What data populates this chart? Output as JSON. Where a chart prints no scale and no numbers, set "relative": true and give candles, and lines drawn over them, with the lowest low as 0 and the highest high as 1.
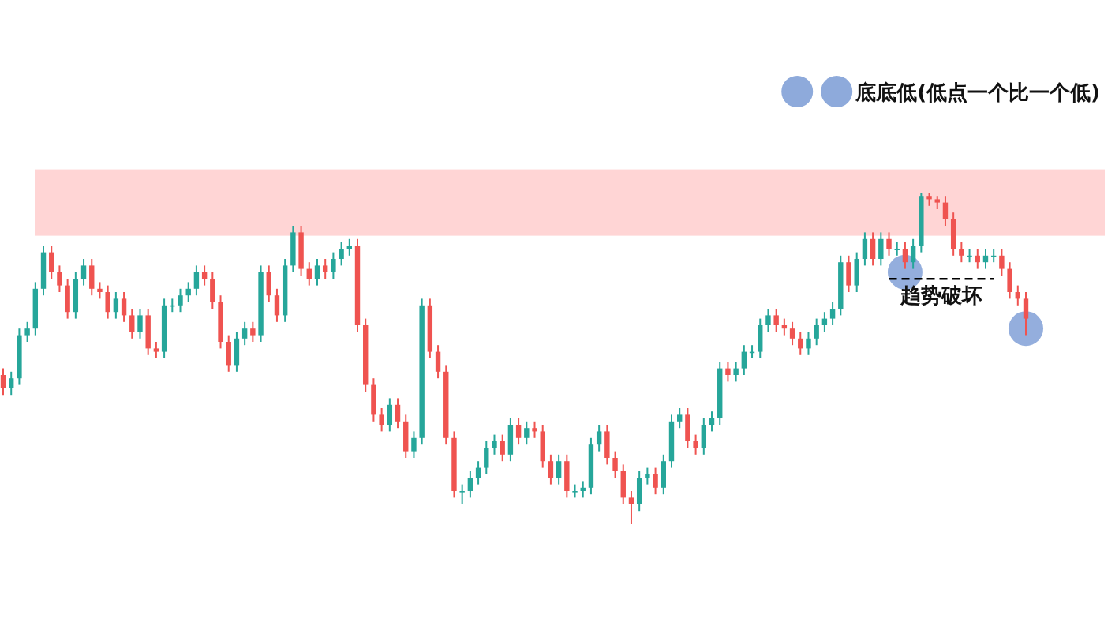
{
  "chart_data": {
    "type": "candlestick",
    "relative": true,
    "categories": [
      null,
      null,
      null,
      null,
      null,
      null,
      null,
      null,
      null,
      null,
      null,
      null,
      null,
      null,
      null,
      null,
      null,
      null,
      null,
      null,
      null,
      null,
      null,
      null,
      null,
      null,
      null,
      null,
      null,
      null,
      null,
      null,
      null,
      null,
      null,
      null,
      null,
      null,
      null,
      null,
      null,
      null,
      null,
      null,
      null,
      null,
      null,
      null,
      null,
      null,
      null,
      null,
      null,
      null,
      null,
      null,
      null,
      null,
      null,
      null,
      null,
      null,
      null,
      null,
      null,
      null,
      null,
      null,
      null,
      null,
      null,
      null,
      null,
      null,
      null,
      null,
      null,
      null,
      null,
      null,
      null,
      null,
      null,
      null,
      null,
      null,
      null,
      null,
      null,
      null,
      null,
      null,
      null,
      null,
      null,
      null,
      null,
      null,
      null,
      null,
      null,
      null,
      null,
      null,
      null,
      null,
      null,
      null,
      null,
      null,
      null,
      null,
      null,
      null,
      null,
      null,
      null,
      null,
      null,
      null,
      null,
      null,
      null,
      null,
      null,
      null,
      null,
      null
    ],
    "colors": [
      "#ef5350",
      "#26a69a",
      "#26a69a",
      "#26a69a",
      "#26a69a",
      "#26a69a",
      "#ef5350",
      "#ef5350",
      "#ef5350",
      "#26a69a",
      "#26a69a",
      "#ef5350",
      "#ef5350",
      "#ef5350",
      "#26a69a",
      "#ef5350",
      "#ef5350",
      "#26a69a",
      "#ef5350",
      "#ef5350",
      "#26a69a",
      "#26a69a",
      "#26a69a",
      "#26a69a",
      "#26a69a",
      "#ef5350",
      "#ef5350",
      "#ef5350",
      "#ef5350",
      "#26a69a",
      "#26a69a",
      "#ef5350",
      "#26a69a",
      "#ef5350",
      "#ef5350",
      "#26a69a",
      "#26a69a",
      "#ef5350",
      "#ef5350",
      "#26a69a",
      "#ef5350",
      "#26a69a",
      "#26a69a",
      "#26a69a",
      "#ef5350",
      "#ef5350",
      "#ef5350",
      "#ef5350",
      "#26a69a",
      "#ef5350",
      "#ef5350",
      "#26a69a",
      "#26a69a",
      "#ef5350",
      "#ef5350",
      "#ef5350",
      "#ef5350",
      "#26a69a",
      "#26a69a",
      "#26a69a",
      "#26a69a",
      "#26a69a",
      "#ef5350",
      "#26a69a",
      "#ef5350",
      "#26a69a",
      "#ef5350",
      "#ef5350",
      "#ef5350",
      "#26a69a",
      "#ef5350",
      "#26a69a",
      "#26a69a",
      "#26a69a",
      "#26a69a",
      "#ef5350",
      "#ef5350",
      "#ef5350",
      "#ef5350",
      "#26a69a",
      "#26a69a",
      "#ef5350",
      "#26a69a",
      "#26a69a",
      "#26a69a",
      "#ef5350",
      "#ef5350",
      "#26a69a",
      "#26a69a",
      "#26a69a",
      "#ef5350",
      "#26a69a",
      "#26a69a",
      "#26a69a",
      "#26a69a",
      "#26a69a",
      "#ef5350",
      "#ef5350",
      "#ef5350",
      "#ef5350",
      "#26a69a",
      "#26a69a",
      "#26a69a",
      "#26a69a",
      "#26a69a",
      "#ef5350",
      "#26a69a",
      "#26a69a",
      "#ef5350",
      "#26a69a",
      "#ef5350",
      "#26a69a",
      "#ef5350",
      "#26a69a",
      "#26a69a",
      "#ef5350",
      "#ef5350",
      "#ef5350",
      "#ef5350",
      "#ef5350",
      "#26a69a",
      "#ef5350",
      "#26a69a",
      "#26a69a",
      "#ef5350",
      "#ef5350",
      "#ef5350",
      "#ef5350"
    ],
    "ohlc": [
      [
        0.45,
        0.47,
        0.39,
        0.41
      ],
      [
        0.41,
        0.46,
        0.39,
        0.44
      ],
      [
        0.44,
        0.59,
        0.42,
        0.57
      ],
      [
        0.57,
        0.61,
        0.55,
        0.59
      ],
      [
        0.59,
        0.73,
        0.57,
        0.71
      ],
      [
        0.71,
        0.84,
        0.69,
        0.82
      ],
      [
        0.82,
        0.84,
        0.74,
        0.76
      ],
      [
        0.76,
        0.78,
        0.7,
        0.72
      ],
      [
        0.72,
        0.74,
        0.62,
        0.64
      ],
      [
        0.64,
        0.76,
        0.62,
        0.74
      ],
      [
        0.74,
        0.8,
        0.72,
        0.78
      ],
      [
        0.78,
        0.8,
        0.69,
        0.71
      ],
      [
        0.71,
        0.73,
        0.68,
        0.7
      ],
      [
        0.7,
        0.72,
        0.62,
        0.64
      ],
      [
        0.64,
        0.7,
        0.62,
        0.68
      ],
      [
        0.68,
        0.7,
        0.61,
        0.63
      ],
      [
        0.63,
        0.65,
        0.56,
        0.58
      ],
      [
        0.58,
        0.65,
        0.56,
        0.63
      ],
      [
        0.63,
        0.65,
        0.51,
        0.53
      ],
      [
        0.53,
        0.55,
        0.5,
        0.52
      ],
      [
        0.52,
        0.68,
        0.5,
        0.66
      ],
      [
        0.66,
        0.68,
        0.64,
        0.66
      ],
      [
        0.66,
        0.71,
        0.64,
        0.69
      ],
      [
        0.69,
        0.73,
        0.67,
        0.71
      ],
      [
        0.71,
        0.78,
        0.69,
        0.76
      ],
      [
        0.76,
        0.78,
        0.72,
        0.74
      ],
      [
        0.74,
        0.76,
        0.65,
        0.67
      ],
      [
        0.67,
        0.69,
        0.53,
        0.55
      ],
      [
        0.55,
        0.57,
        0.46,
        0.48
      ],
      [
        0.48,
        0.58,
        0.46,
        0.56
      ],
      [
        0.56,
        0.61,
        0.54,
        0.59
      ],
      [
        0.59,
        0.61,
        0.55,
        0.57
      ],
      [
        0.57,
        0.78,
        0.55,
        0.76
      ],
      [
        0.76,
        0.78,
        0.67,
        0.69
      ],
      [
        0.69,
        0.71,
        0.61,
        0.63
      ],
      [
        0.63,
        0.8,
        0.61,
        0.78
      ],
      [
        0.78,
        0.9,
        0.76,
        0.88
      ],
      [
        0.88,
        0.9,
        0.75,
        0.77
      ],
      [
        0.77,
        0.79,
        0.72,
        0.74
      ],
      [
        0.74,
        0.8,
        0.72,
        0.78
      ],
      [
        0.78,
        0.8,
        0.74,
        0.76
      ],
      [
        0.76,
        0.82,
        0.74,
        0.8
      ],
      [
        0.8,
        0.85,
        0.78,
        0.83
      ],
      [
        0.83,
        0.86,
        0.81,
        0.84
      ],
      [
        0.84,
        0.86,
        0.58,
        0.6
      ],
      [
        0.6,
        0.62,
        0.4,
        0.42
      ],
      [
        0.42,
        0.44,
        0.31,
        0.33
      ],
      [
        0.33,
        0.35,
        0.28,
        0.3
      ],
      [
        0.3,
        0.38,
        0.28,
        0.36
      ],
      [
        0.36,
        0.38,
        0.29,
        0.31
      ],
      [
        0.31,
        0.33,
        0.2,
        0.22
      ],
      [
        0.22,
        0.28,
        0.2,
        0.26
      ],
      [
        0.26,
        0.68,
        0.24,
        0.66
      ],
      [
        0.66,
        0.68,
        0.5,
        0.52
      ],
      [
        0.52,
        0.54,
        0.44,
        0.46
      ],
      [
        0.46,
        0.48,
        0.24,
        0.26
      ],
      [
        0.26,
        0.28,
        0.08,
        0.1
      ],
      [
        0.1,
        0.12,
        0.06,
        0.1
      ],
      [
        0.1,
        0.16,
        0.08,
        0.14
      ],
      [
        0.14,
        0.19,
        0.12,
        0.17
      ],
      [
        0.17,
        0.25,
        0.15,
        0.23
      ],
      [
        0.23,
        0.27,
        0.21,
        0.25
      ],
      [
        0.25,
        0.27,
        0.19,
        0.21
      ],
      [
        0.21,
        0.32,
        0.19,
        0.3
      ],
      [
        0.3,
        0.32,
        0.24,
        0.26
      ],
      [
        0.26,
        0.31,
        0.24,
        0.29
      ],
      [
        0.29,
        0.31,
        0.26,
        0.28
      ],
      [
        0.28,
        0.3,
        0.17,
        0.19
      ],
      [
        0.19,
        0.21,
        0.12,
        0.14
      ],
      [
        0.14,
        0.21,
        0.12,
        0.19
      ],
      [
        0.19,
        0.21,
        0.08,
        0.1
      ],
      [
        0.1,
        0.12,
        0.08,
        0.1
      ],
      [
        0.1,
        0.13,
        0.08,
        0.11
      ],
      [
        0.11,
        0.26,
        0.09,
        0.24
      ],
      [
        0.24,
        0.3,
        0.22,
        0.28
      ],
      [
        0.28,
        0.3,
        0.18,
        0.2
      ],
      [
        0.2,
        0.22,
        0.14,
        0.16
      ],
      [
        0.16,
        0.18,
        0.06,
        0.08
      ],
      [
        0.08,
        0.1,
        0.0,
        0.06
      ],
      [
        0.06,
        0.16,
        0.04,
        0.14
      ],
      [
        0.14,
        0.17,
        0.12,
        0.15
      ],
      [
        0.15,
        0.17,
        0.09,
        0.11
      ],
      [
        0.11,
        0.21,
        0.09,
        0.19
      ],
      [
        0.19,
        0.33,
        0.17,
        0.31
      ],
      [
        0.31,
        0.35,
        0.29,
        0.33
      ],
      [
        0.33,
        0.35,
        0.23,
        0.25
      ],
      [
        0.25,
        0.27,
        0.21,
        0.23
      ],
      [
        0.23,
        0.32,
        0.21,
        0.3
      ],
      [
        0.3,
        0.34,
        0.28,
        0.32
      ],
      [
        0.32,
        0.49,
        0.3,
        0.47
      ],
      [
        0.47,
        0.49,
        0.43,
        0.45
      ],
      [
        0.45,
        0.49,
        0.43,
        0.47
      ],
      [
        0.47,
        0.54,
        0.45,
        0.52
      ],
      [
        0.52,
        0.54,
        0.5,
        0.52
      ],
      [
        0.52,
        0.62,
        0.5,
        0.6
      ],
      [
        0.6,
        0.65,
        0.58,
        0.63
      ],
      [
        0.63,
        0.65,
        0.58,
        0.6
      ],
      [
        0.6,
        0.62,
        0.57,
        0.59
      ],
      [
        0.59,
        0.61,
        0.54,
        0.56
      ],
      [
        0.56,
        0.58,
        0.51,
        0.53
      ],
      [
        0.53,
        0.58,
        0.51,
        0.56
      ],
      [
        0.56,
        0.62,
        0.54,
        0.6
      ],
      [
        0.6,
        0.64,
        0.58,
        0.62
      ],
      [
        0.62,
        0.67,
        0.6,
        0.65
      ],
      [
        0.65,
        0.81,
        0.63,
        0.79
      ],
      [
        0.79,
        0.81,
        0.7,
        0.72
      ],
      [
        0.72,
        0.82,
        0.7,
        0.8
      ],
      [
        0.8,
        0.88,
        0.78,
        0.86
      ],
      [
        0.86,
        0.88,
        0.78,
        0.8
      ],
      [
        0.8,
        0.88,
        0.78,
        0.86
      ],
      [
        0.86,
        0.88,
        0.81,
        0.83
      ],
      [
        0.83,
        0.85,
        0.81,
        0.83
      ],
      [
        0.83,
        0.85,
        0.77,
        0.79
      ],
      [
        0.79,
        0.86,
        0.77,
        0.84
      ],
      [
        0.84,
        1.0,
        0.82,
        0.99
      ],
      [
        0.99,
        1.0,
        0.96,
        0.98
      ],
      [
        0.98,
        0.99,
        0.95,
        0.97
      ],
      [
        0.97,
        0.99,
        0.9,
        0.92
      ],
      [
        0.92,
        0.94,
        0.81,
        0.83
      ],
      [
        0.83,
        0.85,
        0.79,
        0.81
      ],
      [
        0.81,
        0.83,
        0.79,
        0.81
      ],
      [
        0.81,
        0.83,
        0.77,
        0.79
      ],
      [
        0.79,
        0.83,
        0.77,
        0.81
      ],
      [
        0.81,
        0.83,
        0.79,
        0.81
      ],
      [
        0.81,
        0.83,
        0.75,
        0.77
      ],
      [
        0.77,
        0.79,
        0.68,
        0.7
      ],
      [
        0.7,
        0.72,
        0.66,
        0.68
      ],
      [
        0.68,
        0.7,
        0.57,
        0.62
      ]
    ],
    "series": [
      {
        "type": "scatter",
        "name": "底底低(低点一个比一个低)",
        "color": "#8eaadb",
        "marker": "circle",
        "values": [
          null,
          null,
          null,
          null,
          null,
          null,
          null,
          null,
          null,
          null,
          null,
          null,
          null,
          null,
          null,
          null,
          null,
          null,
          null,
          null,
          null,
          null,
          null,
          null,
          null,
          null,
          null,
          null,
          null,
          null,
          null,
          null,
          null,
          null,
          null,
          null,
          null,
          null,
          null,
          null,
          null,
          null,
          null,
          null,
          null,
          null,
          null,
          null,
          null,
          null,
          null,
          null,
          null,
          null,
          null,
          null,
          null,
          null,
          null,
          null,
          null,
          null,
          null,
          null,
          null,
          null,
          null,
          null,
          null,
          null,
          null,
          null,
          null,
          null,
          null,
          null,
          null,
          null,
          null,
          null,
          null,
          null,
          null,
          null,
          null,
          null,
          null,
          null,
          null,
          null,
          null,
          null,
          null,
          null,
          null,
          null,
          null,
          null,
          null,
          null,
          null,
          null,
          null,
          null,
          null,
          null,
          null,
          null,
          null,
          null,
          null,
          null,
          0.76,
          null,
          null,
          null,
          null,
          null,
          null,
          null,
          null,
          null,
          null,
          null,
          null,
          null,
          null,
          0.59
        ]
      },
      {
        "type": "line",
        "color": "#000000",
        "line_style": "dashed",
        "values": [
          null,
          null,
          null,
          null,
          null,
          null,
          null,
          null,
          null,
          null,
          null,
          null,
          null,
          null,
          null,
          null,
          null,
          null,
          null,
          null,
          null,
          null,
          null,
          null,
          null,
          null,
          null,
          null,
          null,
          null,
          null,
          null,
          null,
          null,
          null,
          null,
          null,
          null,
          null,
          null,
          null,
          null,
          null,
          null,
          null,
          null,
          null,
          null,
          null,
          null,
          null,
          null,
          null,
          null,
          null,
          null,
          null,
          null,
          null,
          null,
          null,
          null,
          null,
          null,
          null,
          null,
          null,
          null,
          null,
          null,
          null,
          null,
          null,
          null,
          null,
          null,
          null,
          null,
          null,
          null,
          null,
          null,
          null,
          null,
          null,
          null,
          null,
          null,
          null,
          null,
          null,
          null,
          null,
          null,
          null,
          null,
          null,
          null,
          null,
          null,
          null,
          null,
          null,
          null,
          null,
          null,
          null,
          null,
          null,
          null,
          0.74,
          0.74,
          0.74,
          0.74,
          0.74,
          0.74,
          0.74,
          0.74,
          0.74,
          0.74,
          0.74,
          0.74,
          0.74,
          0.74,
          null,
          null,
          null,
          null
        ]
      }
    ],
    "bands": [
      {
        "axis": "y",
        "from": 0.87,
        "to": 1.07,
        "color": "#ffd5d5"
      }
    ],
    "annotations": [
      "趋势破坏"
    ],
    "legend": "top right"
  }
}
